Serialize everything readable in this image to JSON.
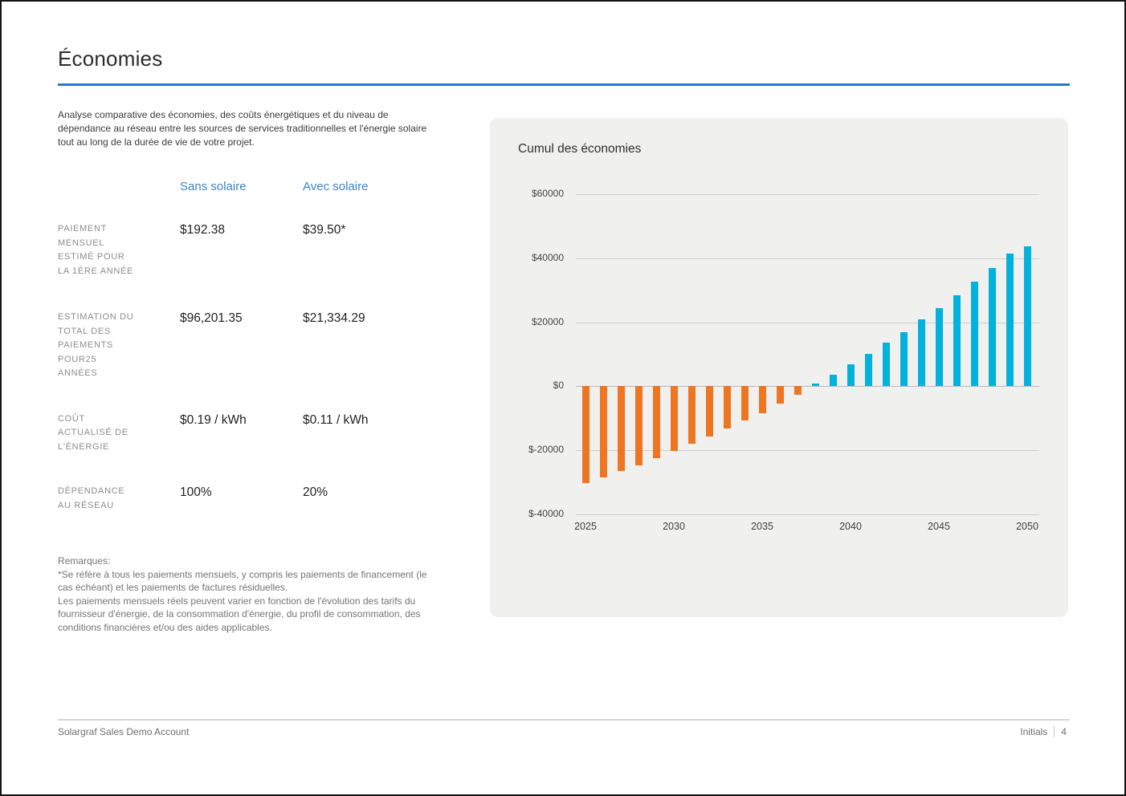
{
  "page": {
    "title": "Économies",
    "footer": {
      "left": "Solargraf Sales Demo Account",
      "right_label": "Initials",
      "page_number": "4"
    }
  },
  "intro": "Analyse comparative des économies, des coûts énergétiques et du niveau de\ndépendance au réseau entre les sources de services traditionnelles et l'énergie solaire\ntout au long de la durée de vie de votre projet.",
  "comparison": {
    "col_headers": [
      "Sans solaire",
      "Avec solaire"
    ],
    "rows": [
      {
        "label": "PAIEMENT\nMENSUEL\nESTIMÉ POUR\nLA 1ÈRE ANNÉE",
        "sans": "$192.38",
        "avec": "$39.50*"
      },
      {
        "label": "ESTIMATION DU\nTOTAL DES\nPAIEMENTS\nPOUR25\nANNÉES",
        "sans": "$96,201.35",
        "avec": "$21,334.29"
      },
      {
        "label": "COÛT\nACTUALISÉ DE\nL'ÉNERGIE",
        "sans": "$0.19 / kWh",
        "avec": "$0.11 / kWh"
      },
      {
        "label": "DÉPENDANCE\nAU RÉSEAU",
        "sans": "100%",
        "avec": "20%"
      }
    ]
  },
  "remarks": "Remarques:\n*Se réfère à tous les paiements mensuels, y compris les paiements de financement (le\ncas échéant) et les paiements de factures résiduelles.\nLes paiements mensuels réels peuvent varier en fonction de l'évolution des tarifs du\nfournisseur d'énergie, de la consommation d'énergie, du profil de consommation, des\nconditions financières et/ou des aides applicables.",
  "chart_data": {
    "type": "bar",
    "title": "Cumul des économies",
    "x": [
      2025,
      2026,
      2027,
      2028,
      2029,
      2030,
      2031,
      2032,
      2033,
      2034,
      2035,
      2036,
      2037,
      2038,
      2039,
      2040,
      2041,
      2042,
      2043,
      2044,
      2045,
      2046,
      2047,
      2048,
      2049,
      2050
    ],
    "values": [
      -30300,
      -28500,
      -26500,
      -24800,
      -22400,
      -20100,
      -17900,
      -15600,
      -13100,
      -10800,
      -8400,
      -5400,
      -2600,
      800,
      3500,
      6800,
      10200,
      13700,
      16900,
      20800,
      24500,
      28400,
      32700,
      37000,
      41500,
      43800
    ],
    "ylim": [
      -40000,
      60000
    ],
    "yticks": [
      {
        "label": "$60000",
        "value": 60000
      },
      {
        "label": "$40000",
        "value": 40000
      },
      {
        "label": "$20000",
        "value": 20000
      },
      {
        "label": "$0",
        "value": 0
      },
      {
        "label": "$-20000",
        "value": -20000
      },
      {
        "label": "$-40000",
        "value": -40000
      }
    ],
    "xticks": [
      2025,
      2030,
      2035,
      2040,
      2045,
      2050
    ],
    "positive_color": "#00b2dc",
    "negative_color": "#ee7522",
    "grid": true,
    "legend": "none"
  },
  "colors": {
    "accent_blue": "#2878c8",
    "header_blue": "#3b83c6",
    "card_bg": "#f0f0ef"
  }
}
